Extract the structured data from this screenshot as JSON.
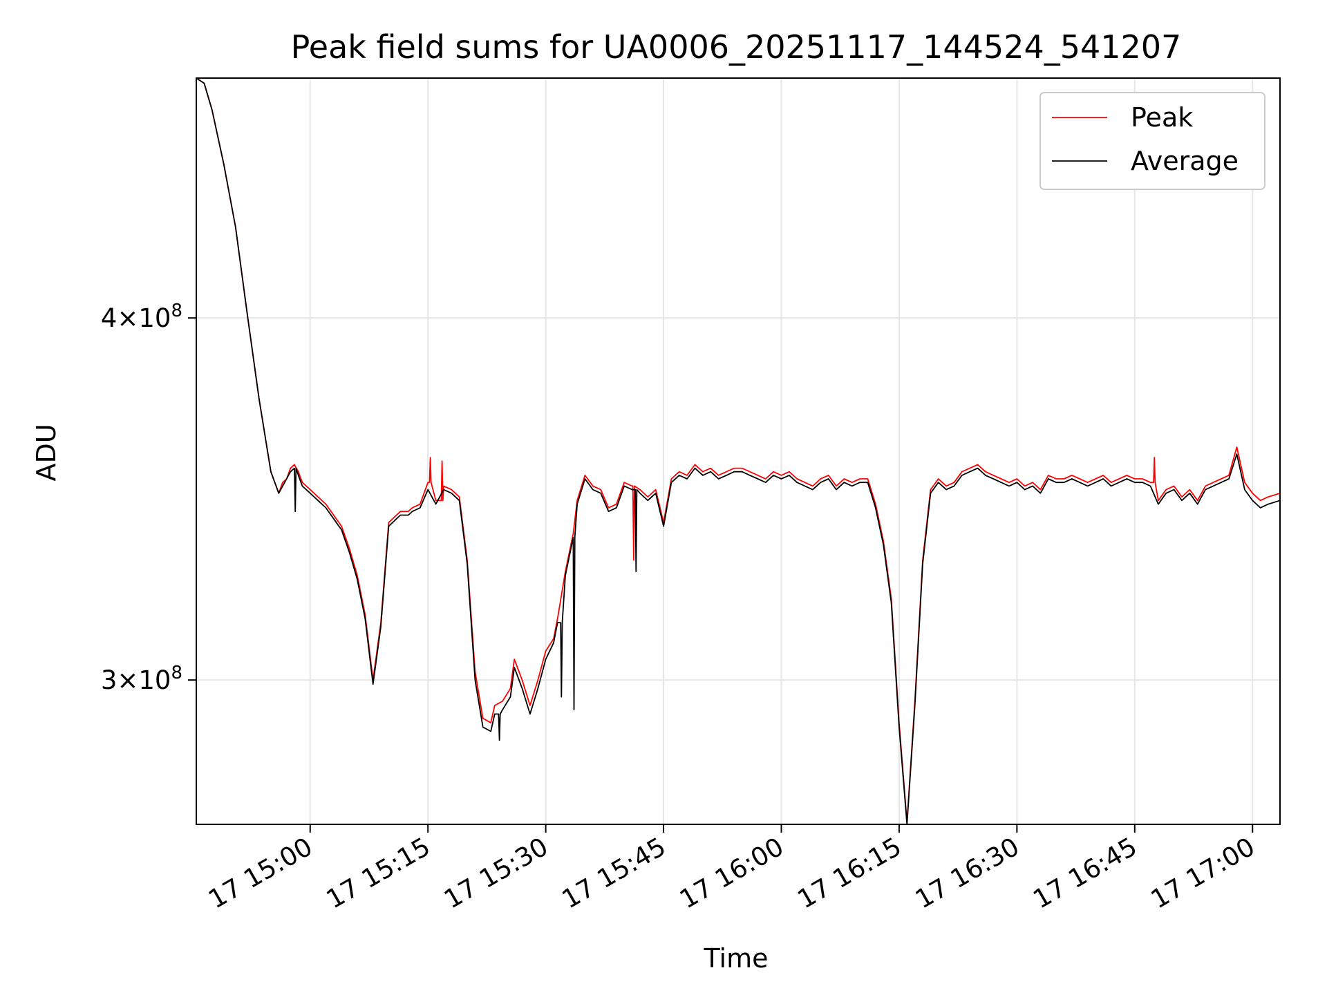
{
  "chart_data": {
    "type": "line",
    "title": "Peak field sums for UA0006_20251117_144524_541207",
    "xlabel": "Time",
    "ylabel": "ADU",
    "y_scale": "log",
    "xlim": [
      -14.5,
      123.5
    ],
    "ylim": [
      267500000.0,
      484000000.0
    ],
    "grid": true,
    "legend_position": "top-right",
    "x_unit": "minutes after 17 15:00",
    "x_ticks": [
      {
        "value": 0,
        "label": "17 15:00"
      },
      {
        "value": 15,
        "label": "17 15:15"
      },
      {
        "value": 30,
        "label": "17 15:30"
      },
      {
        "value": 45,
        "label": "17 15:45"
      },
      {
        "value": 60,
        "label": "17 16:00"
      },
      {
        "value": 75,
        "label": "17 16:15"
      },
      {
        "value": 90,
        "label": "17 16:30"
      },
      {
        "value": 105,
        "label": "17 16:45"
      },
      {
        "value": 120,
        "label": "17 17:00"
      }
    ],
    "y_ticks": [
      {
        "value": 300000000,
        "mantissa": "3",
        "exponent": "8"
      },
      {
        "value": 400000000,
        "mantissa": "4",
        "exponent": "8"
      }
    ],
    "x": [
      -14.5,
      -13.5,
      -12.5,
      -11.0,
      -9.5,
      -8.0,
      -6.5,
      -5.0,
      -4.0,
      -3.5,
      -3.0,
      -2.5,
      -2.0,
      -1.5,
      -1.0,
      0.0,
      1.0,
      2.0,
      3.0,
      4.0,
      5.0,
      6.0,
      7.0,
      8.0,
      9.0,
      10.0,
      11.0,
      11.5,
      12.5,
      13.0,
      14.0,
      15.0,
      16.0,
      17.0,
      18.0,
      19.0,
      20.0,
      21.0,
      22.0,
      23.0,
      23.5,
      24.5,
      25.5,
      26.0,
      27.0,
      28.0,
      29.0,
      30.0,
      31.0,
      31.5,
      32.5,
      33.5,
      34.0,
      35.0,
      36.0,
      37.0,
      38.0,
      39.0,
      40.0,
      41.0,
      42.0,
      43.0,
      44.0,
      45.0,
      46.0,
      47.0,
      48.0,
      49.0,
      50.0,
      51.0,
      52.0,
      53.0,
      54.0,
      55.0,
      56.0,
      57.0,
      58.0,
      59.0,
      60.0,
      61.0,
      62.0,
      63.0,
      64.0,
      65.0,
      66.0,
      67.0,
      68.0,
      69.0,
      70.0,
      71.0,
      72.0,
      73.0,
      74.0,
      75.0,
      76.0,
      77.0,
      78.0,
      79.0,
      80.0,
      81.0,
      82.0,
      83.0,
      84.0,
      85.0,
      86.0,
      87.0,
      88.0,
      89.0,
      90.0,
      91.0,
      92.0,
      93.0,
      94.0,
      95.0,
      96.0,
      97.0,
      98.0,
      99.0,
      100.0,
      101.0,
      102.0,
      103.0,
      104.0,
      105.0,
      106.0,
      107.0,
      108.0,
      109.0,
      110.0,
      111.0,
      112.0,
      113.0,
      114.0,
      115.0,
      116.0,
      117.0,
      118.0,
      119.0,
      120.0,
      121.0,
      122.0,
      123.5
    ],
    "series": [
      {
        "name": "Peak",
        "color": "#ff0000",
        "values": [
          484000000,
          482000000,
          472000000,
          452000000,
          430000000,
          401000000,
          375000000,
          354000000,
          348000000,
          351000000,
          352000000,
          355000000,
          356000000,
          354000000,
          351000000,
          349000000,
          347000000,
          345000000,
          342000000,
          339000000,
          333000000,
          326000000,
          316000000,
          300000000,
          314000000,
          340000000,
          342000000,
          343000000,
          343000000,
          344000000,
          345000000,
          351000000,
          346000000,
          350000000,
          349000000,
          347000000,
          330000000,
          302000000,
          291000000,
          290000000,
          294000000,
          295000000,
          298000000,
          305000000,
          300000000,
          294000000,
          300000000,
          307000000,
          310000000,
          315000000,
          327000000,
          337000000,
          346000000,
          353000000,
          350000000,
          349000000,
          344000000,
          345000000,
          351000000,
          350000000,
          349000000,
          347000000,
          349000000,
          340000000,
          352000000,
          354000000,
          353000000,
          356000000,
          354000000,
          355000000,
          353000000,
          354000000,
          355000000,
          355000000,
          354000000,
          353000000,
          352000000,
          354000000,
          353000000,
          354000000,
          352000000,
          351000000,
          350000000,
          352000000,
          353000000,
          350000000,
          352000000,
          351000000,
          352000000,
          352000000,
          345000000,
          335000000,
          320000000,
          290000000,
          268000000,
          295000000,
          330000000,
          349000000,
          352000000,
          350000000,
          351000000,
          354000000,
          355000000,
          356000000,
          354000000,
          353000000,
          352000000,
          351000000,
          352000000,
          350000000,
          351000000,
          349000000,
          353000000,
          352000000,
          352000000,
          353000000,
          352000000,
          351000000,
          352000000,
          353000000,
          351000000,
          352000000,
          353000000,
          352000000,
          352000000,
          351000000,
          346000000,
          349000000,
          350000000,
          347000000,
          349000000,
          346000000,
          350000000,
          351000000,
          352000000,
          353000000,
          361000000,
          351000000,
          348000000,
          346000000,
          347000000,
          348000000
        ]
      },
      {
        "name": "Average",
        "color": "#000000",
        "values": [
          484000000,
          482000000,
          472000000,
          452000000,
          430000000,
          401000000,
          375000000,
          354000000,
          348000000,
          350000000,
          352000000,
          354000000,
          355000000,
          353000000,
          350000000,
          348000000,
          346000000,
          344000000,
          341000000,
          338000000,
          332000000,
          325000000,
          315000000,
          299000000,
          313000000,
          339000000,
          341000000,
          342000000,
          342000000,
          343000000,
          344000000,
          349000000,
          345000000,
          349000000,
          348000000,
          346000000,
          329000000,
          300000000,
          289000000,
          288000000,
          292000000,
          293000000,
          296000000,
          303000000,
          298000000,
          292000000,
          298000000,
          305000000,
          309000000,
          314000000,
          326000000,
          336000000,
          345000000,
          352000000,
          349000000,
          348000000,
          343000000,
          344000000,
          350000000,
          349000000,
          348000000,
          346000000,
          348000000,
          339000000,
          351000000,
          353000000,
          352000000,
          355000000,
          353000000,
          354000000,
          352000000,
          353000000,
          354000000,
          354000000,
          353000000,
          352000000,
          351000000,
          353000000,
          352000000,
          353000000,
          351000000,
          350000000,
          349000000,
          351000000,
          352000000,
          349000000,
          351000000,
          350000000,
          351000000,
          351000000,
          344000000,
          334000000,
          319000000,
          289000000,
          267500000,
          294000000,
          329000000,
          348000000,
          351000000,
          349000000,
          350000000,
          353000000,
          354000000,
          355000000,
          353000000,
          352000000,
          351000000,
          350000000,
          351000000,
          349000000,
          350000000,
          348000000,
          352000000,
          351000000,
          351000000,
          352000000,
          351000000,
          350000000,
          351000000,
          352000000,
          350000000,
          351000000,
          352000000,
          351000000,
          351000000,
          350000000,
          345000000,
          348000000,
          349000000,
          346000000,
          348000000,
          345000000,
          349000000,
          350000000,
          351000000,
          352000000,
          359000000,
          349000000,
          346000000,
          344000000,
          345000000,
          346000000
        ]
      }
    ],
    "spikes": [
      {
        "x": 15.3,
        "value": 358000000,
        "series": "Peak"
      },
      {
        "x": 16.8,
        "value": 357000000,
        "series": "Peak"
      },
      {
        "x": -1.9,
        "value": 343000000,
        "series": "Average"
      },
      {
        "x": 33.6,
        "value": 293000000,
        "series": "Average"
      },
      {
        "x": 32.0,
        "value": 296000000,
        "series": "Average"
      },
      {
        "x": 24.1,
        "value": 286000000,
        "series": "Average"
      },
      {
        "x": 41.5,
        "value": 327000000,
        "series": "Average"
      },
      {
        "x": 41.2,
        "value": 330000000,
        "series": "Peak"
      },
      {
        "x": 107.5,
        "value": 358000000,
        "series": "Peak"
      }
    ]
  }
}
